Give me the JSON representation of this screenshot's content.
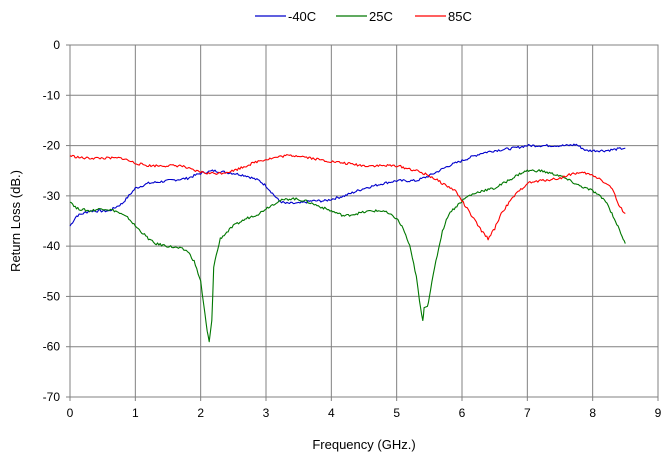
{
  "chart_data": {
    "type": "line",
    "title": "",
    "xlabel": "Frequency (GHz.)",
    "ylabel": "Return Loss (dB.)",
    "xlim": [
      0,
      9
    ],
    "ylim": [
      -70,
      0
    ],
    "xticks": [
      0,
      1,
      2,
      3,
      4,
      5,
      6,
      7,
      8,
      9
    ],
    "yticks": [
      0,
      -10,
      -20,
      -30,
      -40,
      -50,
      -60,
      -70
    ],
    "grid": true,
    "legend_position": "top",
    "series": [
      {
        "name": "-40C",
        "color": "#0000cc",
        "x": [
          0,
          0.1,
          0.3,
          0.5,
          0.6,
          0.8,
          0.9,
          1.0,
          1.2,
          1.5,
          1.8,
          2.0,
          2.2,
          2.5,
          2.7,
          2.9,
          3.0,
          3.1,
          3.2,
          3.3,
          3.5,
          3.7,
          3.9,
          4.2,
          4.5,
          4.8,
          5.0,
          5.3,
          5.5,
          5.8,
          6.0,
          6.3,
          6.5,
          6.8,
          7.0,
          7.3,
          7.6,
          7.75,
          7.9,
          8.2,
          8.5
        ],
        "y": [
          -36,
          -34,
          -33,
          -33,
          -33,
          -31.5,
          -30,
          -28.5,
          -27.5,
          -27,
          -26.5,
          -25.5,
          -25,
          -25.5,
          -26,
          -27,
          -28,
          -29.5,
          -31,
          -31.5,
          -31.5,
          -31,
          -31,
          -30,
          -28.5,
          -27.5,
          -27,
          -27,
          -26,
          -24,
          -23,
          -21.5,
          -21,
          -20.5,
          -20,
          -20,
          -20,
          -19.8,
          -21,
          -21,
          -20.5
        ]
      },
      {
        "name": "25C",
        "color": "#007700",
        "x": [
          0,
          0.1,
          0.3,
          0.5,
          0.7,
          0.9,
          1.0,
          1.2,
          1.3,
          1.5,
          1.7,
          1.8,
          1.9,
          2.0,
          2.05,
          2.1,
          2.13,
          2.17,
          2.2,
          2.3,
          2.5,
          2.7,
          2.9,
          3.0,
          3.2,
          3.4,
          3.6,
          3.8,
          4.0,
          4.2,
          4.4,
          4.6,
          4.8,
          5.0,
          5.1,
          5.2,
          5.3,
          5.35,
          5.4,
          5.42,
          5.47,
          5.5,
          5.6,
          5.7,
          5.8,
          6.0,
          6.1,
          6.3,
          6.5,
          6.7,
          6.9,
          7.0,
          7.2,
          7.5,
          7.8,
          8.0,
          8.2,
          8.35,
          8.45,
          8.5
        ],
        "y": [
          -31,
          -32.5,
          -33,
          -32.5,
          -33,
          -34.5,
          -36,
          -38.5,
          -39.5,
          -40,
          -40.5,
          -41,
          -43,
          -47,
          -52,
          -57,
          -59,
          -55,
          -44,
          -38.5,
          -36,
          -34.5,
          -33.5,
          -32.5,
          -31,
          -30.5,
          -31,
          -32,
          -33,
          -34,
          -33.5,
          -33,
          -33,
          -34.5,
          -36.5,
          -40,
          -46,
          -51,
          -55,
          -52,
          -52,
          -50,
          -43,
          -37,
          -33.5,
          -31,
          -30,
          -29,
          -28.5,
          -27,
          -25.5,
          -25,
          -25,
          -26,
          -28,
          -29,
          -31,
          -35,
          -38,
          -39.5
        ]
      },
      {
        "name": "85C",
        "color": "#ff0000",
        "x": [
          0,
          0.2,
          0.5,
          0.8,
          1.0,
          1.2,
          1.5,
          1.7,
          1.9,
          2.1,
          2.3,
          2.5,
          2.7,
          2.9,
          3.1,
          3.3,
          3.5,
          3.7,
          3.9,
          4.2,
          4.5,
          4.8,
          5.0,
          5.3,
          5.5,
          5.7,
          5.9,
          6.0,
          6.1,
          6.2,
          6.3,
          6.4,
          6.5,
          6.6,
          6.8,
          7.0,
          7.2,
          7.5,
          7.7,
          7.9,
          8.1,
          8.3,
          8.4,
          8.5
        ],
        "y": [
          -22,
          -22.5,
          -22.5,
          -22.5,
          -23.5,
          -24,
          -24,
          -24,
          -25,
          -25.5,
          -25.5,
          -25,
          -24,
          -23,
          -22.5,
          -22,
          -22,
          -22.5,
          -23,
          -23.5,
          -24,
          -24,
          -24,
          -25,
          -26,
          -27.5,
          -29,
          -31,
          -33,
          -35,
          -37,
          -38.5,
          -36.5,
          -33.5,
          -30,
          -27.5,
          -27,
          -26.5,
          -25.5,
          -25.5,
          -26.5,
          -28.5,
          -32,
          -33.5
        ]
      }
    ]
  }
}
